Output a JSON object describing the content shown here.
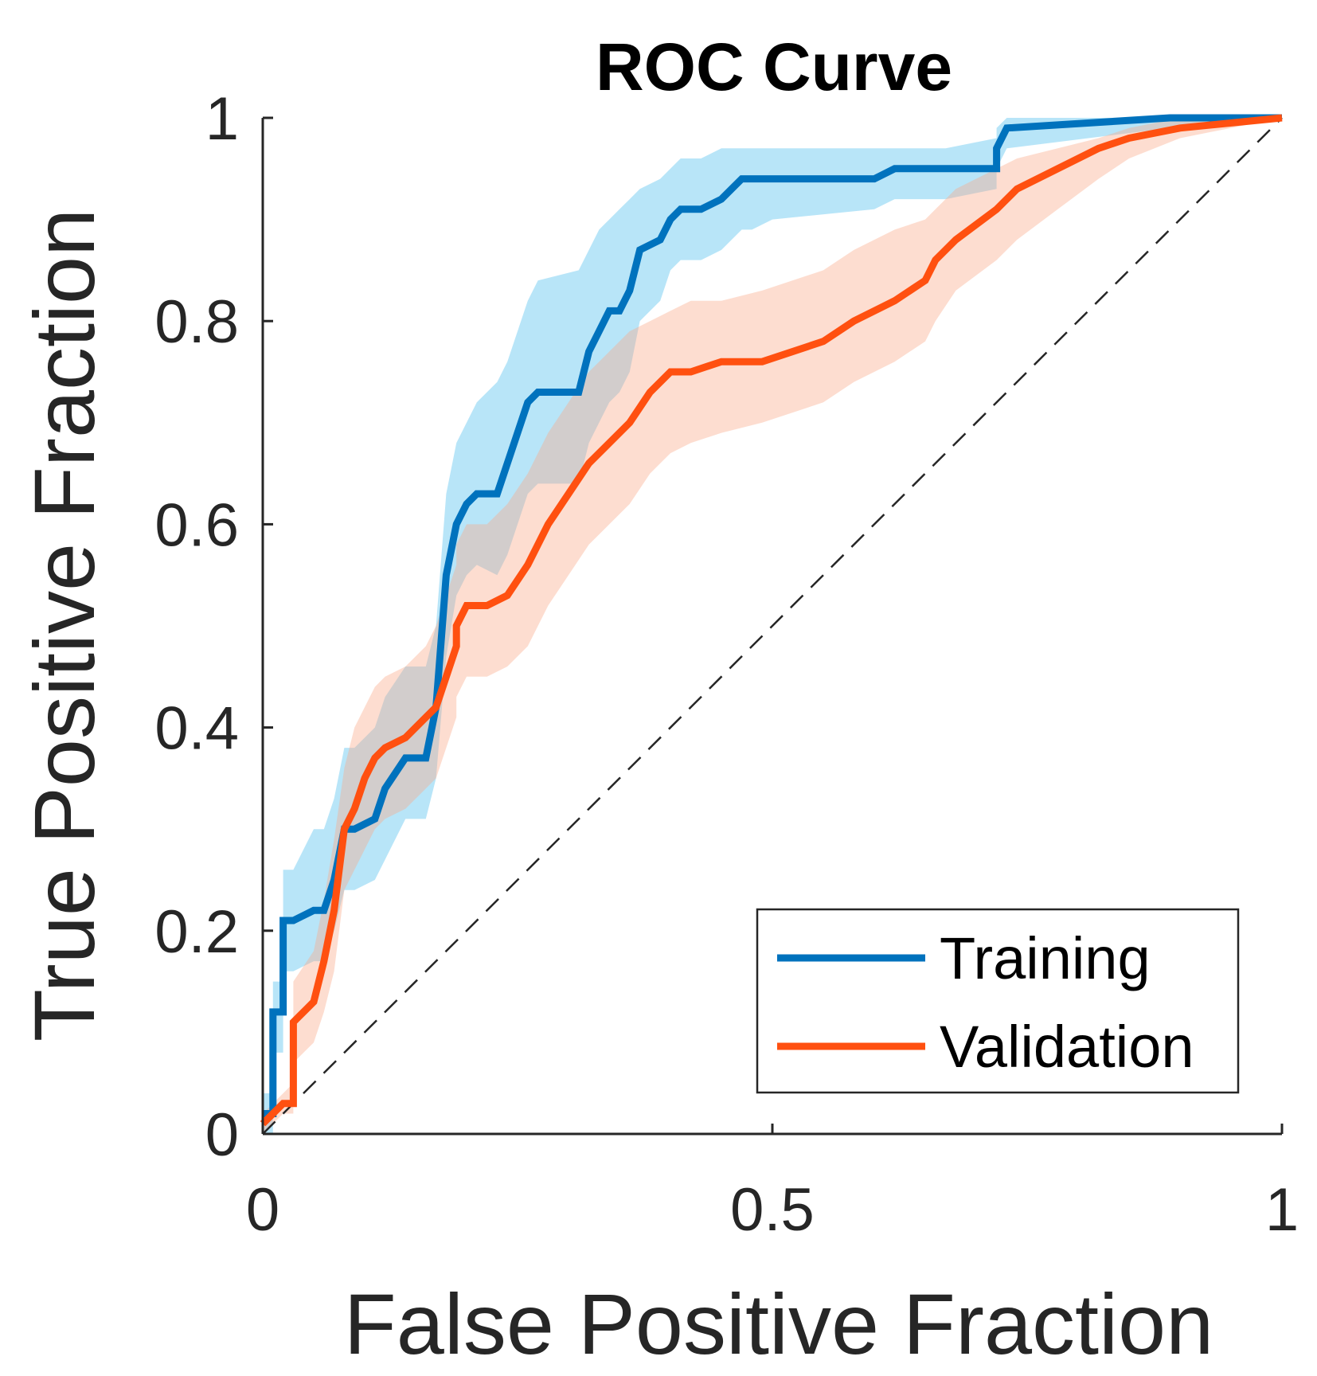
{
  "chart_data": {
    "type": "line",
    "title": "ROC Curve",
    "xlabel": "False Positive Fraction",
    "ylabel": "True Positive Fraction",
    "xlim": [
      0,
      1
    ],
    "ylim": [
      0,
      1
    ],
    "xticks": [
      {
        "value": 0,
        "label": "0"
      },
      {
        "value": 0.5,
        "label": "0.5"
      },
      {
        "value": 1,
        "label": "1"
      }
    ],
    "yticks": [
      {
        "value": 0,
        "label": "0"
      },
      {
        "value": 0.2,
        "label": "0.2"
      },
      {
        "value": 0.4,
        "label": "0.4"
      },
      {
        "value": 0.6,
        "label": "0.6"
      },
      {
        "value": 0.8,
        "label": "0.8"
      },
      {
        "value": 1,
        "label": "1"
      }
    ],
    "grid": false,
    "legend_position": "bottom-right",
    "reference_line": {
      "name": "chance",
      "x": [
        0,
        1
      ],
      "y": [
        0,
        1
      ],
      "style": "dashed",
      "color": "#262626"
    },
    "series": [
      {
        "name": "Training",
        "color": "#0072BD",
        "band_color": "#4DBEEE",
        "x": [
          0,
          0.01,
          0.01,
          0.02,
          0.02,
          0.03,
          0.05,
          0.06,
          0.07,
          0.08,
          0.09,
          0.11,
          0.12,
          0.14,
          0.16,
          0.17,
          0.18,
          0.19,
          0.2,
          0.21,
          0.23,
          0.24,
          0.25,
          0.26,
          0.27,
          0.31,
          0.32,
          0.33,
          0.34,
          0.35,
          0.36,
          0.37,
          0.39,
          0.4,
          0.41,
          0.43,
          0.45,
          0.46,
          0.47,
          0.48,
          0.5,
          0.6,
          0.62,
          0.67,
          0.72,
          0.72,
          0.73,
          0.89,
          1
        ],
        "y": [
          0.02,
          0.02,
          0.12,
          0.12,
          0.21,
          0.21,
          0.22,
          0.22,
          0.25,
          0.3,
          0.3,
          0.31,
          0.34,
          0.37,
          0.37,
          0.42,
          0.55,
          0.6,
          0.62,
          0.63,
          0.63,
          0.66,
          0.69,
          0.72,
          0.73,
          0.73,
          0.77,
          0.79,
          0.81,
          0.81,
          0.83,
          0.87,
          0.88,
          0.9,
          0.91,
          0.91,
          0.92,
          0.93,
          0.94,
          0.94,
          0.94,
          0.94,
          0.95,
          0.95,
          0.95,
          0.97,
          0.99,
          1.0,
          1.0
        ],
        "band_upper": [
          0.04,
          0.04,
          0.15,
          0.15,
          0.26,
          0.26,
          0.3,
          0.3,
          0.33,
          0.38,
          0.38,
          0.4,
          0.43,
          0.46,
          0.46,
          0.5,
          0.63,
          0.68,
          0.7,
          0.72,
          0.74,
          0.76,
          0.79,
          0.82,
          0.84,
          0.85,
          0.87,
          0.89,
          0.9,
          0.91,
          0.92,
          0.93,
          0.94,
          0.95,
          0.96,
          0.96,
          0.97,
          0.97,
          0.97,
          0.97,
          0.97,
          0.97,
          0.97,
          0.97,
          0.98,
          0.99,
          1.0,
          1.0,
          1.0
        ],
        "band_lower": [
          0.0,
          0.0,
          0.08,
          0.08,
          0.16,
          0.16,
          0.17,
          0.17,
          0.2,
          0.24,
          0.24,
          0.25,
          0.27,
          0.31,
          0.31,
          0.35,
          0.47,
          0.53,
          0.55,
          0.56,
          0.55,
          0.57,
          0.6,
          0.63,
          0.64,
          0.64,
          0.68,
          0.7,
          0.72,
          0.73,
          0.75,
          0.8,
          0.82,
          0.85,
          0.86,
          0.86,
          0.87,
          0.88,
          0.89,
          0.89,
          0.9,
          0.91,
          0.92,
          0.92,
          0.93,
          0.95,
          0.97,
          0.99,
          1.0
        ]
      },
      {
        "name": "Validation",
        "color": "#FF5010",
        "band_color": "#F9A989",
        "x": [
          0,
          0.01,
          0.02,
          0.03,
          0.03,
          0.05,
          0.06,
          0.07,
          0.08,
          0.09,
          0.1,
          0.11,
          0.12,
          0.14,
          0.16,
          0.17,
          0.19,
          0.19,
          0.2,
          0.22,
          0.24,
          0.26,
          0.28,
          0.3,
          0.32,
          0.34,
          0.36,
          0.38,
          0.4,
          0.42,
          0.45,
          0.49,
          0.55,
          0.58,
          0.62,
          0.65,
          0.66,
          0.68,
          0.72,
          0.74,
          0.78,
          0.82,
          0.85,
          0.9,
          1
        ],
        "y": [
          0.01,
          0.02,
          0.03,
          0.03,
          0.11,
          0.13,
          0.17,
          0.22,
          0.3,
          0.32,
          0.35,
          0.37,
          0.38,
          0.39,
          0.41,
          0.42,
          0.48,
          0.5,
          0.52,
          0.52,
          0.53,
          0.56,
          0.6,
          0.63,
          0.66,
          0.68,
          0.7,
          0.73,
          0.75,
          0.75,
          0.76,
          0.76,
          0.78,
          0.8,
          0.82,
          0.84,
          0.86,
          0.88,
          0.91,
          0.93,
          0.95,
          0.97,
          0.98,
          0.99,
          1.0
        ],
        "band_upper": [
          0.02,
          0.03,
          0.04,
          0.05,
          0.15,
          0.18,
          0.23,
          0.29,
          0.36,
          0.4,
          0.42,
          0.44,
          0.45,
          0.46,
          0.48,
          0.5,
          0.56,
          0.58,
          0.6,
          0.6,
          0.62,
          0.65,
          0.69,
          0.72,
          0.75,
          0.77,
          0.79,
          0.8,
          0.81,
          0.82,
          0.82,
          0.83,
          0.85,
          0.87,
          0.89,
          0.9,
          0.91,
          0.93,
          0.95,
          0.96,
          0.97,
          0.98,
          0.99,
          1.0,
          1.0
        ],
        "band_lower": [
          0.0,
          0.01,
          0.02,
          0.02,
          0.07,
          0.09,
          0.12,
          0.16,
          0.24,
          0.26,
          0.28,
          0.3,
          0.31,
          0.32,
          0.34,
          0.35,
          0.41,
          0.43,
          0.45,
          0.45,
          0.46,
          0.48,
          0.52,
          0.55,
          0.58,
          0.6,
          0.62,
          0.65,
          0.67,
          0.68,
          0.69,
          0.7,
          0.72,
          0.74,
          0.76,
          0.78,
          0.8,
          0.83,
          0.86,
          0.88,
          0.91,
          0.94,
          0.96,
          0.98,
          1.0
        ]
      }
    ]
  }
}
